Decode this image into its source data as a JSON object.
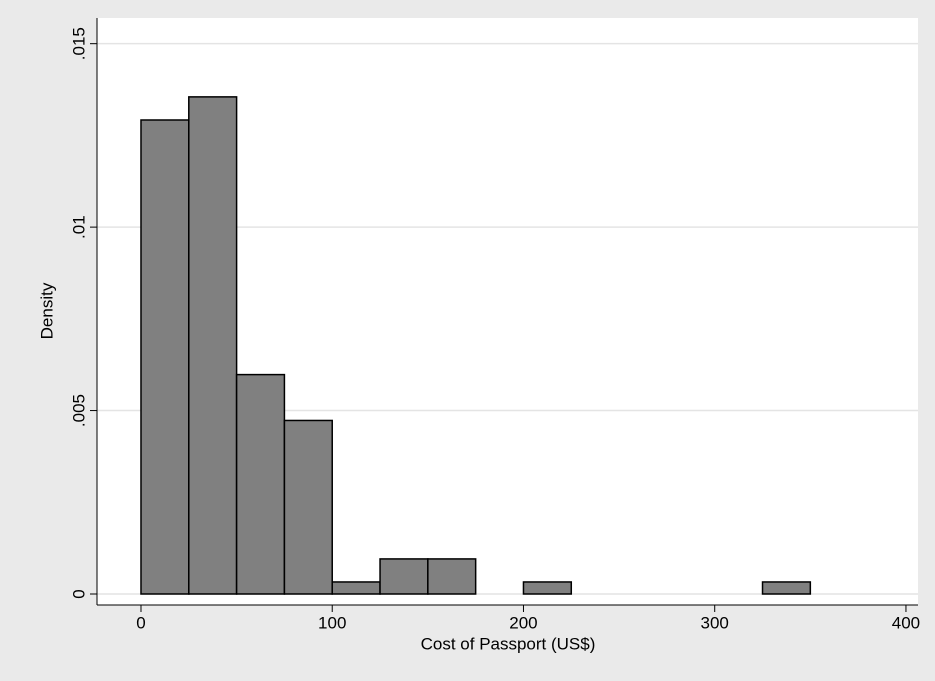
{
  "chart_data": {
    "type": "histogram",
    "x_label": "Cost of Passport (US$)",
    "y_label": "Density",
    "bins": [
      0,
      25,
      50,
      75,
      100,
      125,
      150,
      175,
      200,
      225,
      250,
      275,
      300,
      325,
      350
    ],
    "values": [
      0.01292,
      0.01355,
      0.00598,
      0.00473,
      0.000328,
      0.000956,
      0.000956,
      0,
      0.000328,
      0,
      0,
      0,
      0,
      0.000328
    ],
    "color": "#808080",
    "xlim": [
      -23,
      406.3
    ],
    "xticks": [
      0,
      100,
      200,
      300,
      400
    ],
    "ylim": [
      -0.0003,
      0.0157
    ],
    "yticks": [
      0,
      {
        "value": 0.005,
        "label": ".005"
      },
      {
        "value": 0.01,
        "label": ".01"
      },
      {
        "value": 0.015,
        "label": ".015"
      }
    ],
    "grid": true
  }
}
